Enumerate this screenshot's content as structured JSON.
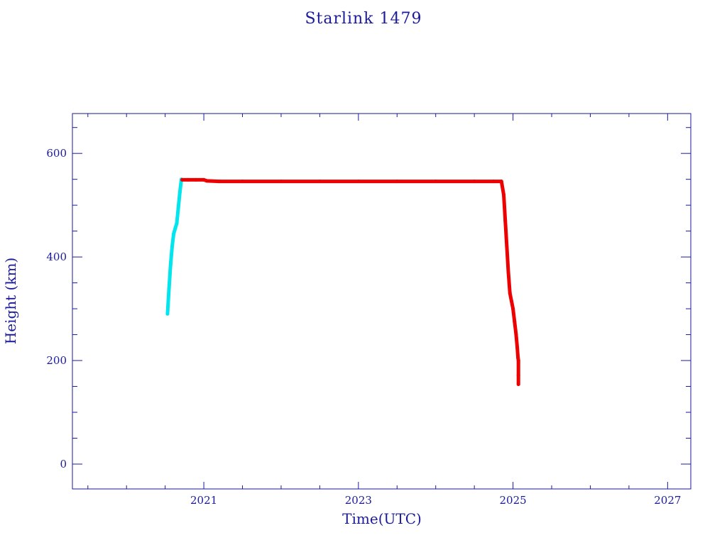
{
  "chart_data": {
    "type": "scatter",
    "title": "Starlink 1479",
    "xlabel": "Time(UTC)",
    "ylabel": "Height (km)",
    "xlim": [
      2019.3,
      2027.3
    ],
    "ylim": [
      -48,
      677
    ],
    "x_ticks": [
      {
        "value": 2021,
        "label": "2021"
      },
      {
        "value": 2023,
        "label": "2023"
      },
      {
        "value": 2025,
        "label": "2025"
      },
      {
        "value": 2027,
        "label": "2027"
      }
    ],
    "y_ticks": [
      {
        "value": 0,
        "label": "0"
      },
      {
        "value": 200,
        "label": "200"
      },
      {
        "value": 400,
        "label": "400"
      },
      {
        "value": 600,
        "label": "600"
      }
    ],
    "grid": false,
    "series": [
      {
        "color": "#00e5ee",
        "x": [
          2020.53,
          2020.55,
          2020.57,
          2020.59,
          2020.61,
          2020.63,
          2020.65,
          2020.67,
          2020.69,
          2020.71,
          2025.07
        ],
        "y": [
          290,
          340,
          385,
          420,
          445,
          455,
          465,
          495,
          525,
          550,
          195
        ]
      },
      {
        "color": "#ee0000",
        "x": [
          2020.72,
          2020.8,
          2020.9,
          2021.0,
          2021.04,
          2021.2,
          2021.5,
          2022.0,
          2022.5,
          2023.0,
          2023.5,
          2024.0,
          2024.5,
          2024.75,
          2024.85,
          2024.88,
          2024.9,
          2024.92,
          2024.94,
          2024.96,
          2024.98,
          2025.0,
          2025.02,
          2025.04,
          2025.055,
          2025.065,
          2025.07,
          2025.07,
          2025.07
        ],
        "y": [
          549,
          549,
          549,
          549,
          547,
          546,
          546,
          546,
          546,
          546,
          546,
          546,
          546,
          546,
          546,
          520,
          470,
          420,
          370,
          330,
          315,
          300,
          275,
          250,
          225,
          205,
          200,
          172,
          154
        ]
      }
    ]
  }
}
